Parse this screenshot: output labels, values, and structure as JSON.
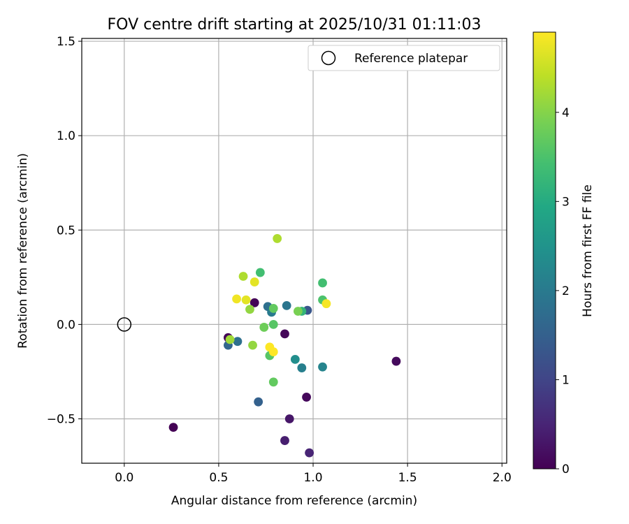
{
  "chart_data": {
    "type": "scatter",
    "title": "FOV centre drift starting at 2025/10/31 01:11:03",
    "xlabel": "Angular distance from reference (arcmin)",
    "ylabel": "Rotation from reference (arcmin)",
    "xlim": [
      -0.225,
      2.025
    ],
    "ylim": [
      -0.735,
      1.515
    ],
    "xticks": [
      0.0,
      0.5,
      1.0,
      1.5,
      2.0
    ],
    "xtick_labels": [
      "0.0",
      "0.5",
      "1.0",
      "1.5",
      "2.0"
    ],
    "yticks": [
      -0.5,
      0.0,
      0.5,
      1.0,
      1.5
    ],
    "ytick_labels": [
      "−0.5",
      "0.0",
      "0.5",
      "1.0",
      "1.5"
    ],
    "grid": true,
    "legend": {
      "position": "top-right",
      "entries": [
        "Reference platepar"
      ]
    },
    "reference": {
      "label": "Reference platepar",
      "x": 0.0,
      "y": 0.0
    },
    "colorbar": {
      "label": "Hours from first FF file",
      "min": 0,
      "max": 4.9,
      "ticks": [
        0,
        1,
        2,
        3,
        4
      ],
      "tick_labels": [
        "0",
        "1",
        "2",
        "3",
        "4"
      ],
      "colormap": "viridis"
    },
    "points": [
      {
        "x": 0.26,
        "y": -0.545,
        "h": 0.02
      },
      {
        "x": 0.55,
        "y": -0.07,
        "h": 0.05
      },
      {
        "x": 0.69,
        "y": 0.115,
        "h": 0.05
      },
      {
        "x": 0.85,
        "y": -0.05,
        "h": 0.08
      },
      {
        "x": 0.965,
        "y": -0.385,
        "h": 0.1
      },
      {
        "x": 1.44,
        "y": -0.195,
        "h": 0.12
      },
      {
        "x": 0.875,
        "y": -0.5,
        "h": 0.3
      },
      {
        "x": 0.85,
        "y": -0.615,
        "h": 0.4
      },
      {
        "x": 0.98,
        "y": -0.68,
        "h": 0.5
      },
      {
        "x": 0.97,
        "y": 0.075,
        "h": 1.3
      },
      {
        "x": 0.71,
        "y": -0.41,
        "h": 1.5
      },
      {
        "x": 0.55,
        "y": -0.11,
        "h": 1.6
      },
      {
        "x": 0.6,
        "y": -0.09,
        "h": 1.8
      },
      {
        "x": 0.76,
        "y": 0.095,
        "h": 1.8
      },
      {
        "x": 0.86,
        "y": 0.1,
        "h": 1.9
      },
      {
        "x": 0.78,
        "y": 0.065,
        "h": 2.0
      },
      {
        "x": 0.94,
        "y": -0.23,
        "h": 2.1
      },
      {
        "x": 1.05,
        "y": -0.225,
        "h": 2.2
      },
      {
        "x": 0.905,
        "y": -0.185,
        "h": 2.4
      },
      {
        "x": 0.94,
        "y": 0.07,
        "h": 3.2
      },
      {
        "x": 0.72,
        "y": 0.275,
        "h": 3.4
      },
      {
        "x": 1.05,
        "y": 0.22,
        "h": 3.4
      },
      {
        "x": 1.05,
        "y": 0.13,
        "h": 3.5
      },
      {
        "x": 0.77,
        "y": -0.165,
        "h": 3.6
      },
      {
        "x": 0.79,
        "y": 0.0,
        "h": 3.6
      },
      {
        "x": 0.79,
        "y": -0.305,
        "h": 3.7
      },
      {
        "x": 0.79,
        "y": 0.085,
        "h": 3.7
      },
      {
        "x": 0.74,
        "y": -0.015,
        "h": 3.8
      },
      {
        "x": 0.92,
        "y": 0.07,
        "h": 3.9
      },
      {
        "x": 0.665,
        "y": 0.08,
        "h": 4.1
      },
      {
        "x": 0.68,
        "y": -0.11,
        "h": 4.1
      },
      {
        "x": 0.56,
        "y": -0.08,
        "h": 4.2
      },
      {
        "x": 0.63,
        "y": 0.255,
        "h": 4.3
      },
      {
        "x": 0.81,
        "y": 0.455,
        "h": 4.3
      },
      {
        "x": 0.645,
        "y": 0.13,
        "h": 4.7
      },
      {
        "x": 0.69,
        "y": 0.225,
        "h": 4.7
      },
      {
        "x": 0.595,
        "y": 0.135,
        "h": 4.8
      },
      {
        "x": 1.07,
        "y": 0.11,
        "h": 4.85
      },
      {
        "x": 0.77,
        "y": -0.12,
        "h": 4.9
      },
      {
        "x": 0.79,
        "y": -0.145,
        "h": 4.9
      }
    ]
  }
}
